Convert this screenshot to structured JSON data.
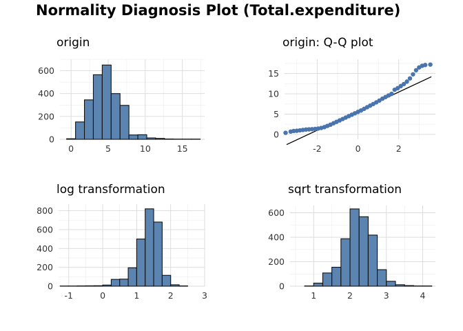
{
  "title": "Normality Diagnosis Plot (Total.expenditure)",
  "colors": {
    "fill": "#5b84b1",
    "stroke": "#111111",
    "point": "#4a74ad",
    "line": "#000000"
  },
  "chart_data": [
    {
      "id": "origin",
      "type": "bar",
      "title": "origin",
      "bin_width": 1.2,
      "bin_starts": [
        -0.6,
        0.6,
        1.8,
        3.0,
        4.2,
        5.4,
        6.6,
        7.8,
        9.0,
        10.2,
        11.4,
        12.6,
        13.8,
        15.0,
        16.2
      ],
      "values": [
        5,
        152,
        345,
        565,
        650,
        400,
        297,
        38,
        40,
        12,
        8,
        3,
        2,
        2,
        2
      ],
      "xlim": [
        -1.5,
        18
      ],
      "ylim": [
        0,
        700
      ],
      "xticks": [
        0,
        5,
        10,
        15
      ],
      "yticks": [
        0,
        200,
        400,
        600
      ],
      "xminor": [
        -2.5,
        2.5,
        7.5,
        12.5,
        17.5
      ],
      "yminor": [
        100,
        300,
        500,
        700
      ]
    },
    {
      "id": "qq",
      "type": "scatter",
      "title": "origin: Q-Q plot",
      "xlim": [
        -3.6,
        3.8
      ],
      "ylim": [
        -1.2,
        18.5
      ],
      "xticks": [
        -2,
        0,
        2
      ],
      "yticks": [
        0,
        5,
        10,
        15
      ],
      "xminor": [
        -3,
        -1,
        1,
        3
      ],
      "yminor": [
        -2.5,
        2.5,
        7.5,
        12.5,
        17.5
      ],
      "reference_line": {
        "x1": -3.5,
        "y1": -2.5,
        "x2": 3.6,
        "y2": 14.2
      },
      "points": [
        [
          -3.55,
          0.4
        ],
        [
          -3.3,
          0.7
        ],
        [
          -3.15,
          0.85
        ],
        [
          -3.0,
          0.9
        ],
        [
          -2.85,
          1.0
        ],
        [
          -2.7,
          1.1
        ],
        [
          -2.55,
          1.2
        ],
        [
          -2.4,
          1.25
        ],
        [
          -2.25,
          1.3
        ],
        [
          -2.1,
          1.35
        ],
        [
          -1.95,
          1.45
        ],
        [
          -1.8,
          1.6
        ],
        [
          -1.65,
          1.8
        ],
        [
          -1.5,
          2.1
        ],
        [
          -1.35,
          2.4
        ],
        [
          -1.2,
          2.75
        ],
        [
          -1.05,
          3.1
        ],
        [
          -0.9,
          3.45
        ],
        [
          -0.75,
          3.8
        ],
        [
          -0.6,
          4.15
        ],
        [
          -0.45,
          4.5
        ],
        [
          -0.3,
          4.85
        ],
        [
          -0.15,
          5.2
        ],
        [
          0.0,
          5.55
        ],
        [
          0.15,
          5.9
        ],
        [
          0.3,
          6.3
        ],
        [
          0.45,
          6.7
        ],
        [
          0.6,
          7.1
        ],
        [
          0.75,
          7.5
        ],
        [
          0.9,
          7.9
        ],
        [
          1.05,
          8.35
        ],
        [
          1.2,
          8.8
        ],
        [
          1.35,
          9.2
        ],
        [
          1.5,
          9.6
        ],
        [
          1.65,
          10.0
        ],
        [
          1.8,
          11.0
        ],
        [
          1.95,
          11.4
        ],
        [
          2.1,
          11.9
        ],
        [
          2.25,
          12.4
        ],
        [
          2.4,
          13.0
        ],
        [
          2.55,
          13.8
        ],
        [
          2.7,
          14.8
        ],
        [
          2.85,
          15.8
        ],
        [
          3.0,
          16.5
        ],
        [
          3.15,
          16.9
        ],
        [
          3.3,
          17.1
        ],
        [
          3.55,
          17.2
        ]
      ]
    },
    {
      "id": "log",
      "type": "bar",
      "title": "log transformation",
      "bin_width": 0.25,
      "bin_starts": [
        -1.25,
        -1.0,
        -0.75,
        -0.5,
        -0.25,
        0.0,
        0.25,
        0.5,
        0.75,
        1.0,
        1.25,
        1.5,
        1.75,
        2.0,
        2.25,
        2.5,
        2.75
      ],
      "values": [
        2,
        2,
        3,
        4,
        5,
        12,
        72,
        75,
        195,
        500,
        820,
        680,
        115,
        15,
        3,
        0,
        0
      ],
      "xlim": [
        -1.3,
        3.0
      ],
      "ylim": [
        0,
        870
      ],
      "xticks": [
        -1,
        0,
        1,
        2,
        3
      ],
      "yticks": [
        0,
        200,
        400,
        600,
        800
      ],
      "xminor": [
        -0.5,
        0.5,
        1.5,
        2.5
      ],
      "yminor": [
        100,
        300,
        500,
        700
      ]
    },
    {
      "id": "sqrt",
      "type": "bar",
      "title": "sqrt transformation",
      "bin_width": 0.25,
      "bin_starts": [
        0.5,
        0.75,
        1.0,
        1.25,
        1.5,
        1.75,
        2.0,
        2.25,
        2.5,
        2.75,
        3.0,
        3.25,
        3.5,
        3.75,
        4.0
      ],
      "values": [
        0,
        2,
        25,
        108,
        155,
        388,
        632,
        568,
        418,
        135,
        40,
        12,
        5,
        2,
        2
      ],
      "xlim": [
        0.35,
        4.35
      ],
      "ylim": [
        0,
        660
      ],
      "xticks": [
        1,
        2,
        3,
        4
      ],
      "yticks": [
        0,
        200,
        400,
        600
      ],
      "xminor": [
        0.5,
        1.5,
        2.5,
        3.5
      ],
      "yminor": [
        100,
        300,
        500
      ]
    }
  ]
}
